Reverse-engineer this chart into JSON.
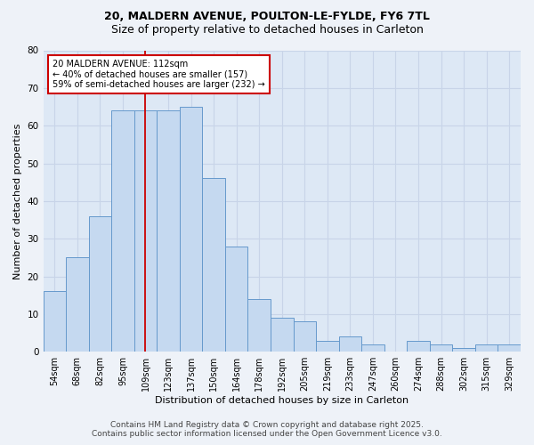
{
  "title": "20, MALDERN AVENUE, POULTON-LE-FYLDE, FY6 7TL",
  "subtitle": "Size of property relative to detached houses in Carleton",
  "xlabel": "Distribution of detached houses by size in Carleton",
  "ylabel": "Number of detached properties",
  "categories": [
    "54sqm",
    "68sqm",
    "82sqm",
    "95sqm",
    "109sqm",
    "123sqm",
    "137sqm",
    "150sqm",
    "164sqm",
    "178sqm",
    "192sqm",
    "205sqm",
    "219sqm",
    "233sqm",
    "247sqm",
    "260sqm",
    "274sqm",
    "288sqm",
    "302sqm",
    "315sqm",
    "329sqm"
  ],
  "values": [
    16,
    25,
    36,
    64,
    64,
    64,
    65,
    46,
    28,
    14,
    9,
    8,
    3,
    4,
    2,
    0,
    3,
    2,
    1,
    2,
    2
  ],
  "bar_color": "#c5d9f0",
  "bar_edge_color": "#6699cc",
  "vline_color": "#cc0000",
  "vline_x_index": 4,
  "annotation_text": "20 MALDERN AVENUE: 112sqm\n← 40% of detached houses are smaller (157)\n59% of semi-detached houses are larger (232) →",
  "annotation_box_color": "#ffffff",
  "annotation_box_edge": "#cc0000",
  "ylim_max": 80,
  "yticks": [
    0,
    10,
    20,
    30,
    40,
    50,
    60,
    70,
    80
  ],
  "grid_color": "#c8d4e8",
  "plot_bg_color": "#dde8f5",
  "fig_bg_color": "#eef2f8",
  "footer_line1": "Contains HM Land Registry data © Crown copyright and database right 2025.",
  "footer_line2": "Contains public sector information licensed under the Open Government Licence v3.0.",
  "title_fontsize": 9,
  "subtitle_fontsize": 9,
  "ylabel_fontsize": 8,
  "xlabel_fontsize": 8,
  "tick_fontsize": 7,
  "annotation_fontsize": 7,
  "footer_fontsize": 6.5
}
